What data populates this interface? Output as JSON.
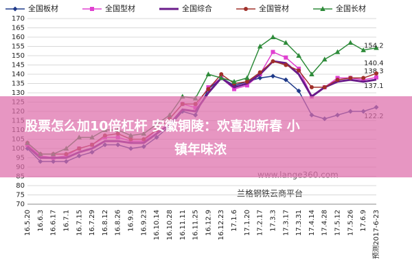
{
  "chart_data": {
    "type": "line",
    "categories": [
      "16.5.20",
      "16.6.3",
      "16.6.17",
      "16.7.1",
      "16.7.15",
      "16.7.29",
      "16.8.12",
      "16.8.26",
      "16.9.9",
      "16.9.23",
      "16.10.14",
      "16.10.28",
      "16.11.11",
      "16.11.25",
      "16.12.9",
      "16.12.23",
      "17.1.6",
      "17.1.20",
      "17.2.17",
      "17.3.3",
      "17.3.17",
      "17.3.31",
      "17.4.14",
      "17.4.28",
      "17.5.12",
      "17.5.26",
      "17.6.9",
      "预测2017-6-23"
    ],
    "series": [
      {
        "name": "全国板材",
        "color": "#1f3a8a",
        "marker": "diamond",
        "values": [
          100,
          93,
          93,
          93,
          96,
          98,
          102,
          102,
          100,
          101,
          106,
          112,
          120,
          118,
          132,
          138,
          134,
          136,
          138,
          139,
          137,
          131,
          118,
          116,
          118,
          120,
          120,
          122.2
        ]
      },
      {
        "name": "全国型材",
        "color": "#e040d0",
        "marker": "square",
        "values": [
          102,
          96,
          95,
          96,
          100,
          102,
          106,
          106,
          104,
          104,
          110,
          116,
          124,
          122,
          133,
          138,
          132,
          134,
          140,
          152,
          149,
          143,
          128,
          133,
          138,
          138,
          137,
          138.3
        ]
      },
      {
        "name": "全国综合",
        "color": "#6a1b8a",
        "marker": "none",
        "values": [
          101,
          95,
          95,
          95,
          98,
          100,
          104,
          104,
          103,
          103,
          108,
          113,
          121,
          120,
          130,
          138,
          133,
          135,
          140,
          147,
          146,
          140,
          128,
          133,
          136,
          137,
          136,
          137.1
        ]
      },
      {
        "name": "全国管材",
        "color": "#a0302a",
        "marker": "circle",
        "values": [
          103,
          97,
          97,
          97,
          100,
          102,
          107,
          108,
          105,
          105,
          110,
          116,
          124,
          124,
          132,
          140,
          135,
          136,
          141,
          147,
          145,
          142,
          133,
          133,
          137,
          138,
          138,
          140.4
        ]
      },
      {
        "name": "全国长材",
        "color": "#2e8b3a",
        "marker": "triangle",
        "values": [
          103,
          97,
          97,
          100,
          106,
          106,
          110,
          110,
          107,
          108,
          113,
          118,
          128,
          127,
          140,
          138,
          136,
          138,
          155,
          160,
          157,
          150,
          140,
          148,
          152,
          157,
          153,
          154.2
        ]
      }
    ],
    "ylim": [
      70,
      170
    ],
    "yticks": [
      70,
      75,
      80,
      85,
      90,
      95,
      100,
      105,
      110,
      115,
      120,
      125,
      130,
      135,
      140,
      145,
      150,
      155,
      160,
      165,
      170
    ],
    "grid": true,
    "legend": "top"
  },
  "watermark": [
    "www.lange360.com",
    "兰格钢铁云商平台"
  ],
  "banner": "股票怎么加10倍杠杆 安徽铜陵：欢喜迎新春 小镇年味浓"
}
